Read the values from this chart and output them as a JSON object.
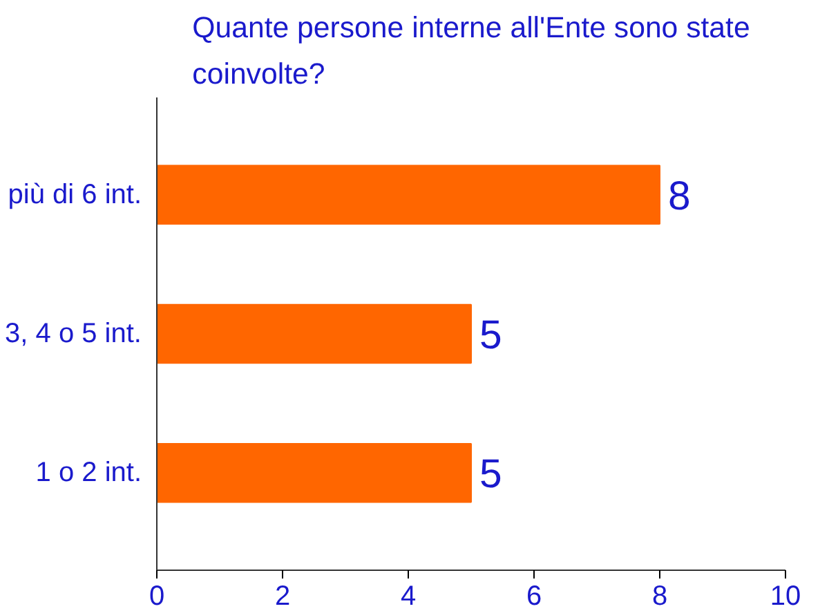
{
  "chart_data": {
    "type": "bar",
    "orientation": "horizontal",
    "title": "Quante persone interne all'Ente sono state coinvolte?",
    "categories": [
      "più di 6 int.",
      "3, 4 o 5 int.",
      "1 o 2 int."
    ],
    "values": [
      8,
      5,
      5
    ],
    "color": "#ff6600",
    "data_labels": true,
    "xlim": [
      0,
      10
    ],
    "xticks": [
      0,
      2,
      4,
      6,
      8,
      10
    ],
    "grid": false
  }
}
